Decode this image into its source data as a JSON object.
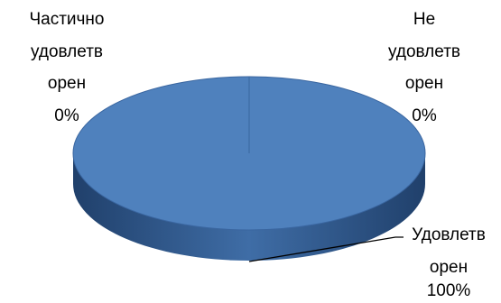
{
  "chart_data": {
    "type": "pie",
    "style": "3d",
    "categories": [
      "Удовлетворен",
      "Частично удовлетворен",
      "Не удовлетворен"
    ],
    "values": [
      100,
      0,
      0
    ],
    "unit": "%",
    "title": "",
    "legend": "none",
    "colors": {
      "top": "#4f81bd",
      "side_light": "#3f6da6",
      "side_dark": "#20406b",
      "edge": "#3a66a0",
      "leader_line": "#000000",
      "text": "#000000"
    },
    "data_labels": [
      {
        "lines": [
          "Частично",
          "удовлетв",
          "орен",
          "0%"
        ],
        "position": "top-left"
      },
      {
        "lines": [
          "Не",
          "удовлетв",
          "орен",
          "0%"
        ],
        "position": "top-right"
      },
      {
        "lines": [
          "Удовлетв",
          "орен",
          "100%"
        ],
        "position": "bottom-right",
        "leader": true
      }
    ]
  }
}
